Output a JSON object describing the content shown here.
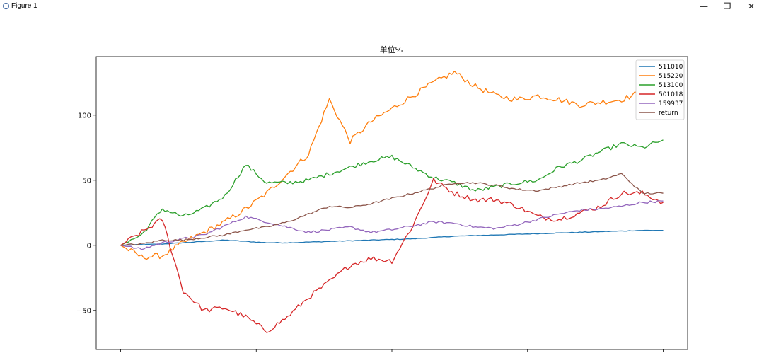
{
  "window": {
    "title": "Figure 1",
    "icon": "figure-icon",
    "controls": {
      "minimize": "—",
      "restore": "❐",
      "close": "✕"
    }
  },
  "chart_data": {
    "type": "line",
    "title": "单位%",
    "xlabel": "",
    "ylabel": "",
    "ylim": [
      -80,
      145
    ],
    "yticks": [
      -50,
      0,
      50,
      100
    ],
    "grid": false,
    "legend": "top-right",
    "x": [
      0,
      5,
      10,
      15,
      20,
      25,
      30,
      35,
      40,
      45,
      50,
      55,
      60,
      65,
      70,
      75,
      80,
      85,
      90,
      95,
      100,
      105,
      110,
      115,
      120,
      125,
      130
    ],
    "series": [
      {
        "name": "511010",
        "color": "#1f77b4",
        "values": [
          0,
          0.5,
          1,
          2,
          3,
          4,
          3,
          2,
          2,
          2.5,
          3,
          3.5,
          4,
          4.5,
          5,
          6,
          7,
          7.5,
          8,
          8.5,
          9,
          9.5,
          10,
          10.5,
          11,
          11.5,
          11.5
        ]
      },
      {
        "name": "515220",
        "color": "#ff7f0e",
        "values": [
          0,
          -9,
          -8,
          2,
          10,
          18,
          28,
          40,
          55,
          70,
          112,
          80,
          95,
          105,
          115,
          125,
          133,
          122,
          115,
          112,
          115,
          112,
          108,
          110,
          112,
          118,
          123
        ]
      },
      {
        "name": "513100",
        "color": "#2ca02c",
        "values": [
          0,
          8,
          28,
          22,
          28,
          38,
          62,
          48,
          48,
          50,
          55,
          60,
          65,
          68,
          60,
          52,
          48,
          42,
          45,
          48,
          50,
          60,
          65,
          72,
          78,
          75,
          81
        ]
      },
      {
        "name": "501018",
        "color": "#d62728",
        "values": [
          0,
          10,
          20,
          -35,
          -50,
          -48,
          -55,
          -66,
          -55,
          -40,
          -28,
          -15,
          -10,
          -12,
          15,
          50,
          40,
          35,
          35,
          30,
          22,
          20,
          25,
          30,
          40,
          40,
          33
        ]
      },
      {
        "name": "159937",
        "color": "#9467bd",
        "values": [
          0,
          -3,
          2,
          5,
          8,
          15,
          22,
          18,
          14,
          10,
          12,
          14,
          10,
          12,
          15,
          18,
          17,
          14,
          13,
          16,
          20,
          24,
          27,
          28,
          30,
          33,
          34
        ]
      },
      {
        "name": "return",
        "color": "#8c564b",
        "values": [
          0,
          1,
          4,
          4,
          6,
          8,
          12,
          14,
          18,
          24,
          30,
          29,
          32,
          36,
          40,
          44,
          48,
          48,
          46,
          43,
          42,
          45,
          48,
          50,
          55,
          40,
          40
        ]
      }
    ]
  }
}
